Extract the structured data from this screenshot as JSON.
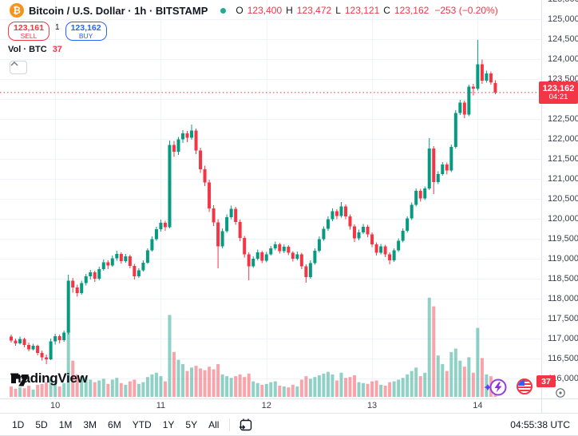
{
  "header": {
    "symbol_title": "Bitcoin / U.S. Dollar · 1h · BITSTAMP",
    "logo_char": "₿",
    "ohlc": [
      {
        "k": "O",
        "v": "123,400"
      },
      {
        "k": "H",
        "v": "123,472"
      },
      {
        "k": "L",
        "v": "123,121"
      },
      {
        "k": "C",
        "v": "123,162"
      }
    ],
    "change": "−253 (−0.20%)"
  },
  "trade_panel": {
    "sell_price": "123,161",
    "sell_label": "SELL",
    "spread": "1",
    "buy_price": "123,162",
    "buy_label": "BUY"
  },
  "volume_indicator": {
    "label": "Vol · BTC",
    "value": "37"
  },
  "watermark": "TradingView",
  "price_label": {
    "price": "123,162",
    "countdown": "04:21"
  },
  "volume_badge": "37",
  "toolbar": {
    "ranges": [
      "1D",
      "5D",
      "1M",
      "3M",
      "6M",
      "YTD",
      "1Y",
      "5Y",
      "All"
    ],
    "clock": "04:55:38 UTC"
  },
  "colors": {
    "up": "#089981",
    "down": "#f23645",
    "vol_up": "rgba(8,153,129,0.45)",
    "vol_down": "rgba(242,54,69,0.45)",
    "grid": "#f0f3fa",
    "axis_text": "#3c4049",
    "accent_blue": "#2962ff",
    "price_line": "#f23645",
    "btc_orange": "#f7931a",
    "dot_green": "#22ab94"
  },
  "chart_data": {
    "type": "candlestick",
    "symbol": "BTCUSD",
    "exchange": "BITSTAMP",
    "interval": "1h",
    "title": "Bitcoin / U.S. Dollar",
    "price_axis": {
      "min": 116000,
      "max": 125500,
      "step": 500
    },
    "time_labels": [
      {
        "index": 10,
        "label": "10"
      },
      {
        "index": 34,
        "label": "11"
      },
      {
        "index": 58,
        "label": "12"
      },
      {
        "index": 82,
        "label": "13"
      },
      {
        "index": 106,
        "label": "14"
      }
    ],
    "current_price": 123162,
    "current_volume": 37,
    "candles": [
      [
        117050,
        117100,
        116900,
        116950,
        120
      ],
      [
        116950,
        117000,
        116820,
        116880,
        95
      ],
      [
        116880,
        117050,
        116850,
        116990,
        110
      ],
      [
        116990,
        117020,
        116780,
        116840,
        100
      ],
      [
        116840,
        116900,
        116680,
        116730,
        130
      ],
      [
        116730,
        116870,
        116700,
        116820,
        85
      ],
      [
        116820,
        116850,
        116580,
        116640,
        140
      ],
      [
        116640,
        116700,
        116450,
        116530,
        150
      ],
      [
        116530,
        116600,
        116360,
        116480,
        170
      ],
      [
        116480,
        117000,
        116460,
        116930,
        210
      ],
      [
        116930,
        117120,
        116850,
        117060,
        180
      ],
      [
        117060,
        117100,
        116880,
        116960,
        120
      ],
      [
        116960,
        117200,
        116920,
        117150,
        160
      ],
      [
        117150,
        118600,
        117100,
        118450,
        780
      ],
      [
        118450,
        118520,
        118150,
        118280,
        420
      ],
      [
        118280,
        118350,
        118050,
        118140,
        260
      ],
      [
        118140,
        118450,
        118100,
        118390,
        240
      ],
      [
        118390,
        118620,
        118330,
        118560,
        230
      ],
      [
        118560,
        118720,
        118480,
        118660,
        200
      ],
      [
        118660,
        118700,
        118420,
        118500,
        170
      ],
      [
        118500,
        118800,
        118460,
        118740,
        190
      ],
      [
        118740,
        118980,
        118700,
        118910,
        210
      ],
      [
        118910,
        118960,
        118740,
        118830,
        150
      ],
      [
        118830,
        119080,
        118800,
        119010,
        200
      ],
      [
        119010,
        119200,
        118950,
        119120,
        220
      ],
      [
        119120,
        119160,
        118880,
        118940,
        160
      ],
      [
        118940,
        119120,
        118900,
        119060,
        140
      ],
      [
        119060,
        119100,
        118760,
        118820,
        180
      ],
      [
        118820,
        118870,
        118480,
        118560,
        200
      ],
      [
        118560,
        118760,
        118520,
        118710,
        150
      ],
      [
        118710,
        118960,
        118680,
        118900,
        170
      ],
      [
        118900,
        119260,
        118870,
        119210,
        230
      ],
      [
        119210,
        119560,
        119180,
        119490,
        260
      ],
      [
        119490,
        119800,
        119450,
        119740,
        280
      ],
      [
        119740,
        119980,
        119680,
        119900,
        240
      ],
      [
        119900,
        119950,
        119700,
        119790,
        180
      ],
      [
        119790,
        121960,
        119760,
        121850,
        950
      ],
      [
        121850,
        121950,
        121550,
        121680,
        520
      ],
      [
        121680,
        122050,
        121600,
        121990,
        430
      ],
      [
        121990,
        122220,
        121900,
        122140,
        380
      ],
      [
        122140,
        122200,
        121920,
        122030,
        300
      ],
      [
        122030,
        122360,
        121980,
        122210,
        340
      ],
      [
        122210,
        122260,
        121620,
        121710,
        360
      ],
      [
        121710,
        121780,
        121150,
        121240,
        330
      ],
      [
        121240,
        121330,
        120820,
        120910,
        310
      ],
      [
        120910,
        120980,
        120170,
        120260,
        350
      ],
      [
        120260,
        120340,
        119820,
        119910,
        320
      ],
      [
        119910,
        119990,
        118760,
        119310,
        380
      ],
      [
        119310,
        119760,
        119260,
        119690,
        260
      ],
      [
        119690,
        120110,
        119650,
        120040,
        240
      ],
      [
        120040,
        120330,
        119990,
        120250,
        220
      ],
      [
        120250,
        120300,
        119850,
        119920,
        240
      ],
      [
        119920,
        119980,
        119440,
        119520,
        260
      ],
      [
        119520,
        119570,
        119030,
        119110,
        230
      ],
      [
        119110,
        119160,
        118460,
        118810,
        270
      ],
      [
        118810,
        119060,
        118770,
        119000,
        180
      ],
      [
        119000,
        119230,
        118960,
        119160,
        160
      ],
      [
        119160,
        119200,
        118890,
        118950,
        140
      ],
      [
        118950,
        119170,
        118910,
        119110,
        150
      ],
      [
        119110,
        119320,
        119080,
        119260,
        170
      ],
      [
        119260,
        119430,
        119210,
        119360,
        180
      ],
      [
        119360,
        119400,
        119130,
        119190,
        130
      ],
      [
        119190,
        119360,
        119140,
        119300,
        120
      ],
      [
        119300,
        119340,
        119090,
        119150,
        110
      ],
      [
        119150,
        119190,
        118930,
        119000,
        140
      ],
      [
        119000,
        119180,
        118960,
        119110,
        120
      ],
      [
        119110,
        119150,
        118740,
        118810,
        200
      ],
      [
        118810,
        118860,
        118400,
        118540,
        240
      ],
      [
        118540,
        118960,
        118500,
        118890,
        210
      ],
      [
        118890,
        119260,
        118850,
        119200,
        230
      ],
      [
        119200,
        119560,
        119160,
        119490,
        250
      ],
      [
        119490,
        119810,
        119450,
        119750,
        270
      ],
      [
        119750,
        120060,
        119700,
        119990,
        290
      ],
      [
        119990,
        120260,
        119940,
        120190,
        260
      ],
      [
        120190,
        120240,
        119990,
        120070,
        190
      ],
      [
        120070,
        120420,
        120030,
        120310,
        280
      ],
      [
        120310,
        120360,
        119990,
        120060,
        220
      ],
      [
        120060,
        120110,
        119730,
        119810,
        230
      ],
      [
        119810,
        119860,
        119420,
        119510,
        250
      ],
      [
        119510,
        119730,
        119460,
        119660,
        170
      ],
      [
        119660,
        119870,
        119620,
        119800,
        160
      ],
      [
        119800,
        119850,
        119540,
        119610,
        150
      ],
      [
        119610,
        119660,
        119290,
        119360,
        180
      ],
      [
        119360,
        119410,
        119080,
        119150,
        190
      ],
      [
        119150,
        119370,
        119110,
        119310,
        140
      ],
      [
        119310,
        119350,
        119040,
        119110,
        130
      ],
      [
        119110,
        119160,
        118860,
        118960,
        170
      ],
      [
        118960,
        119260,
        118920,
        119210,
        180
      ],
      [
        119210,
        119510,
        119170,
        119450,
        200
      ],
      [
        119450,
        119760,
        119410,
        119700,
        220
      ],
      [
        119700,
        120060,
        119660,
        120010,
        260
      ],
      [
        120010,
        120410,
        119970,
        120350,
        300
      ],
      [
        120350,
        120760,
        120310,
        120700,
        340
      ],
      [
        120700,
        120750,
        120430,
        120510,
        240
      ],
      [
        120510,
        120810,
        120470,
        120760,
        280
      ],
      [
        120760,
        122020,
        120720,
        121760,
        1150
      ],
      [
        121760,
        121820,
        120620,
        120920,
        1050
      ],
      [
        120920,
        121190,
        120870,
        121120,
        480
      ],
      [
        121120,
        121420,
        121080,
        121360,
        380
      ],
      [
        121360,
        121410,
        121110,
        121210,
        300
      ],
      [
        121210,
        121860,
        121170,
        121800,
        520
      ],
      [
        121800,
        122720,
        121760,
        122650,
        560
      ],
      [
        122650,
        122980,
        122600,
        122910,
        420
      ],
      [
        122910,
        122960,
        122520,
        122610,
        350
      ],
      [
        122610,
        123360,
        122570,
        123310,
        460
      ],
      [
        123310,
        123380,
        123090,
        123260,
        280
      ],
      [
        123260,
        124480,
        123210,
        123870,
        800
      ],
      [
        123870,
        123990,
        123380,
        123460,
        450
      ],
      [
        123460,
        123710,
        123410,
        123640,
        260
      ],
      [
        123640,
        123690,
        123360,
        123415,
        240
      ],
      [
        123400,
        123472,
        123121,
        123162,
        37
      ]
    ]
  }
}
